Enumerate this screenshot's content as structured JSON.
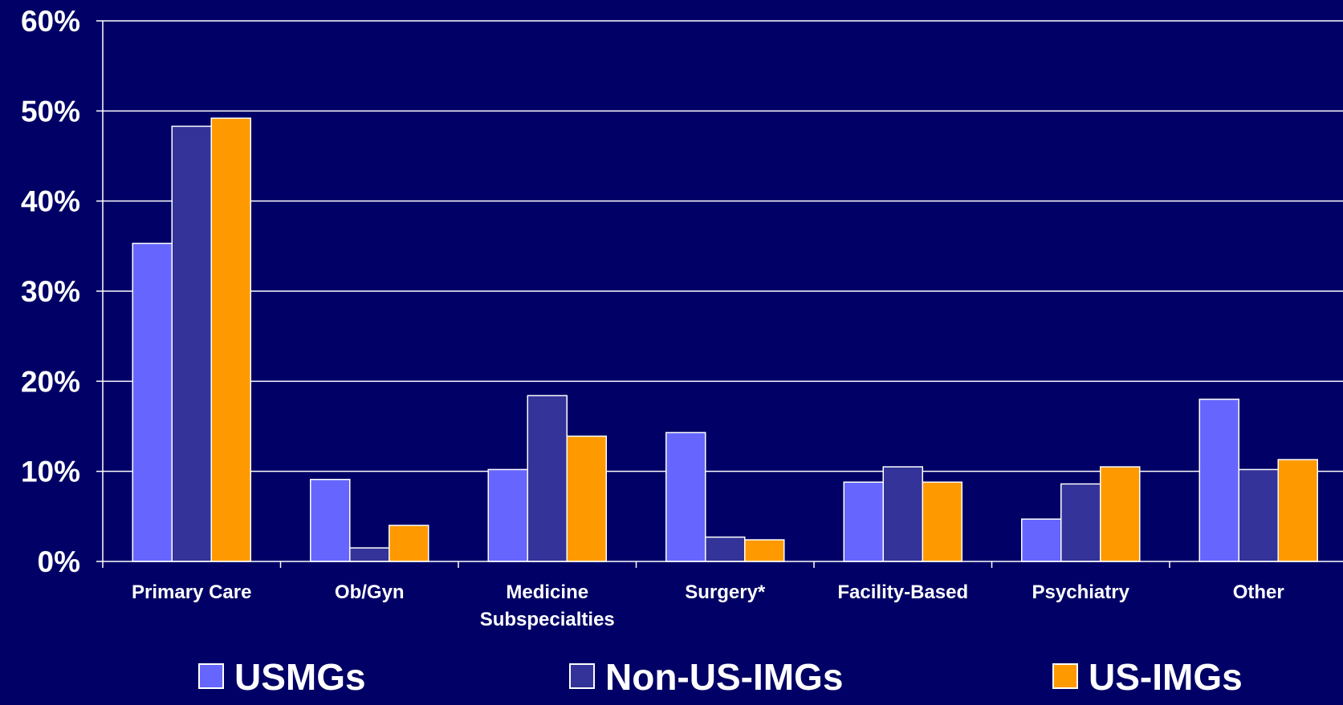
{
  "chart_data": {
    "type": "bar",
    "title": "",
    "xlabel": "",
    "ylabel": "",
    "ylim": [
      0,
      60
    ],
    "yticks": [
      0,
      10,
      20,
      30,
      40,
      50,
      60
    ],
    "ytick_suffix": "%",
    "grid": true,
    "legend_position": "bottom",
    "categories": [
      [
        "Primary Care"
      ],
      [
        "Ob/Gyn"
      ],
      [
        "Medicine",
        "Subspecialties"
      ],
      [
        "Surgery*"
      ],
      [
        "Facility-Based"
      ],
      [
        "Psychiatry"
      ],
      [
        "Other"
      ]
    ],
    "series": [
      {
        "name": "USMGs",
        "color": "#6666ff",
        "values": [
          35.3,
          9.1,
          10.2,
          14.3,
          8.8,
          4.7,
          18.0
        ]
      },
      {
        "name": "Non-US-IMGs",
        "color": "#333399",
        "values": [
          48.3,
          1.5,
          18.4,
          2.7,
          10.5,
          8.6,
          10.2
        ]
      },
      {
        "name": "US-IMGs",
        "color": "#ff9900",
        "values": [
          49.2,
          4.0,
          13.9,
          2.4,
          8.8,
          10.5,
          11.3
        ]
      }
    ]
  },
  "colors": {
    "background": "#000066",
    "axis": "#ffffff",
    "bar_stroke": "#ffffff"
  }
}
